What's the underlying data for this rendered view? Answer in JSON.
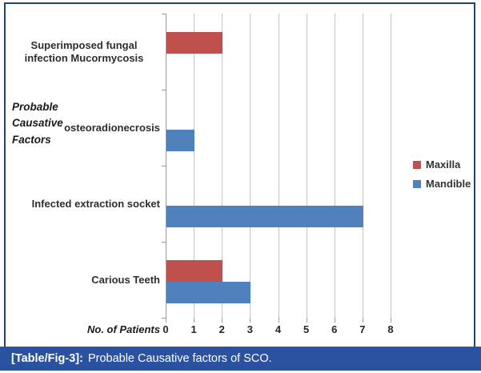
{
  "figure": {
    "caption_label": "[Table/Fig-3]:",
    "caption_text": "Probable Causative factors of SCO.",
    "caption_bg": "#2a52a0",
    "border_color": "#1f4571"
  },
  "chart_data": {
    "type": "bar",
    "orientation": "horizontal",
    "categories": [
      "Superimposed fungal infection Mucormycosis",
      "osteoradionecrosis",
      "Infected extraction socket",
      "Carious Teeth"
    ],
    "series": [
      {
        "name": "Maxilla",
        "color": "#c0504d",
        "values": [
          2,
          0,
          0,
          2
        ]
      },
      {
        "name": "Mandible",
        "color": "#4f81bd",
        "values": [
          0,
          1,
          7,
          3
        ]
      }
    ],
    "xlabel": "No. of Patients",
    "ylabel": "Probable Causative Factors",
    "xlim": [
      0,
      8
    ],
    "x_ticks": [
      0,
      1,
      2,
      3,
      4,
      5,
      6,
      7,
      8
    ],
    "grid": true,
    "legend_position": "right"
  }
}
